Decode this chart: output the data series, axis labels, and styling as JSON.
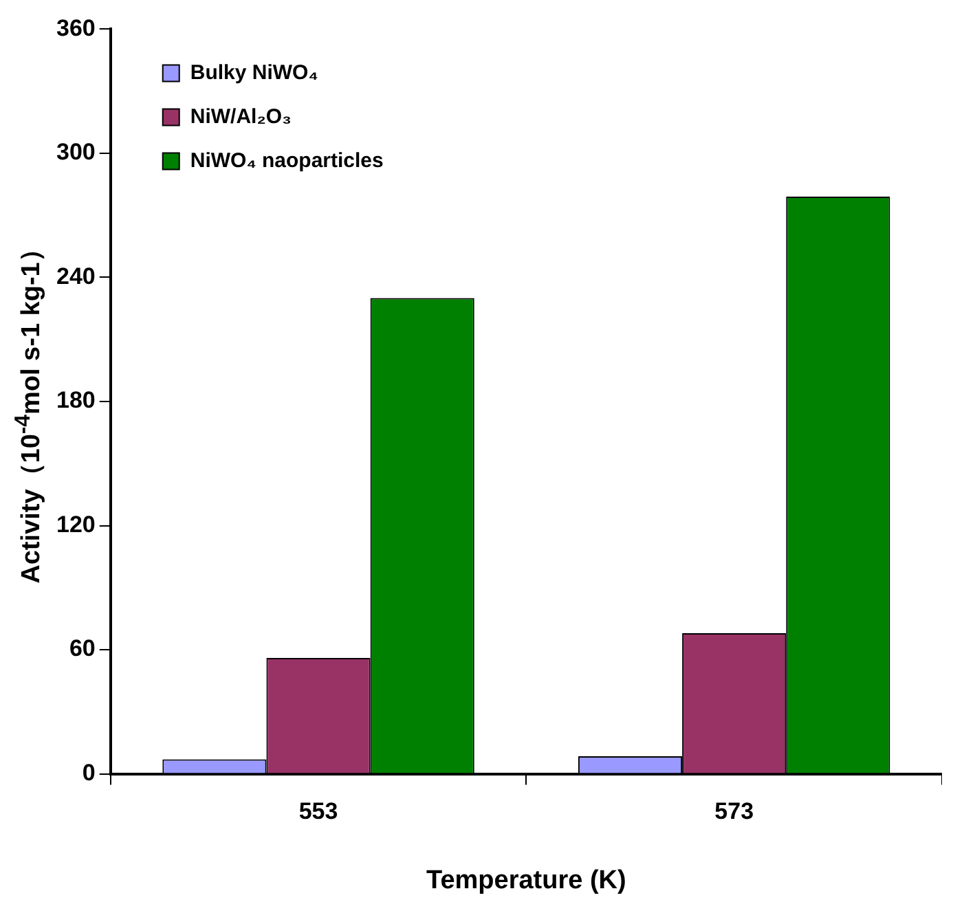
{
  "chart_data": {
    "type": "bar",
    "xlabel": "Temperature (K)",
    "ylabel": "Activity（10$^{-4}$mol s-1 kg-1）",
    "categories": [
      "553",
      "573"
    ],
    "series": [
      {
        "name": "Bulky NiWO₄",
        "color": "#9999ff",
        "values": [
          7,
          8.5
        ]
      },
      {
        "name": "NiW/Al₂O₃",
        "color": "#993366",
        "values": [
          56,
          68
        ]
      },
      {
        "name": "NiWO₄ naoparticles",
        "color": "#008000",
        "values": [
          230,
          279
        ]
      }
    ],
    "ylim": [
      0,
      360
    ],
    "yticks": [
      0,
      60,
      120,
      180,
      240,
      300,
      360
    ],
    "grid": false,
    "legend": "top left"
  }
}
